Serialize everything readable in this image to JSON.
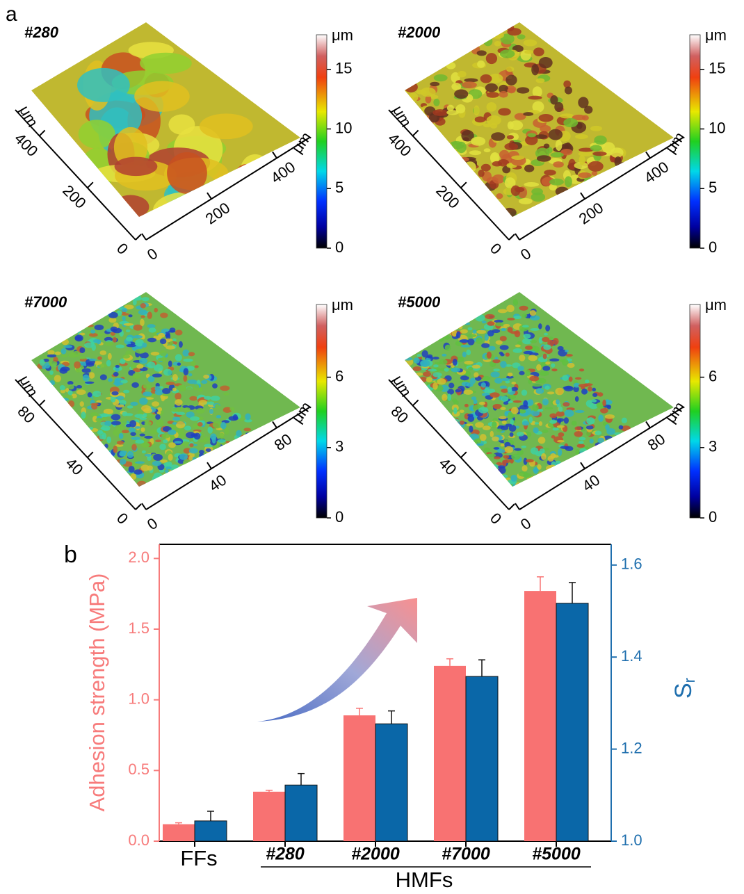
{
  "figure": {
    "panel_a_label": "a",
    "panel_b_label": "b"
  },
  "surfaces": [
    {
      "title": "#280",
      "colorbar_label": "μm",
      "clim": [
        0,
        17.9
      ],
      "cticks": [
        0,
        5,
        10,
        15
      ],
      "axis_label": "μm",
      "axis_lim": [
        0,
        500
      ],
      "axis_ticks": [
        0,
        200,
        400
      ]
    },
    {
      "title": "#2000",
      "colorbar_label": "μm",
      "clim": [
        0,
        17.9
      ],
      "cticks": [
        0,
        5,
        10,
        15
      ],
      "axis_label": "μm",
      "axis_lim": [
        0,
        500
      ],
      "axis_ticks": [
        0,
        200,
        400
      ]
    },
    {
      "title": "#7000",
      "colorbar_label": "μm",
      "clim": [
        0,
        9.1
      ],
      "cticks": [
        0,
        3,
        6
      ],
      "axis_label": "μm",
      "axis_lim": [
        0,
        100
      ],
      "axis_ticks": [
        0,
        40,
        80
      ]
    },
    {
      "title": "#5000",
      "colorbar_label": "μm",
      "clim": [
        0,
        9.1
      ],
      "cticks": [
        0,
        3,
        6
      ],
      "axis_label": "μm",
      "axis_lim": [
        0,
        100
      ],
      "axis_ticks": [
        0,
        40,
        80
      ]
    }
  ],
  "chart_data": {
    "type": "bar",
    "ylabel": "Adhesion strength (MPa)",
    "y2label": "S",
    "y2label_subscript": "r",
    "categories": [
      "FFs",
      "#280",
      "#2000",
      "#7000",
      "#5000"
    ],
    "group_label": "HMFs",
    "ylim": [
      0,
      2.1
    ],
    "yticks": [
      {
        "value": 0,
        "label": "0.0"
      },
      {
        "value": 0.5,
        "label": "0.5"
      },
      {
        "value": 1,
        "label": "1.0"
      },
      {
        "value": 1.5,
        "label": "1.5"
      },
      {
        "value": 2,
        "label": "2.0"
      }
    ],
    "y2lim": [
      1.0,
      1.645
    ],
    "y2ticks": [
      {
        "value": 1,
        "label": "1.0"
      },
      {
        "value": 1.2,
        "label": "1.2"
      },
      {
        "value": 1.4,
        "label": "1.4"
      },
      {
        "value": 1.6,
        "label": "1.6"
      }
    ],
    "ycolor": "#f77b7b",
    "y2color": "#1f6fae",
    "series": [
      {
        "color": "#f87272",
        "values": [
          0.12,
          0.35,
          0.89,
          1.24,
          1.77
        ],
        "errors": [
          0.01,
          0.01,
          0.05,
          0.05,
          0.1
        ]
      },
      {
        "color": "#0a67a8",
        "axis": "y2",
        "values": [
          1.044,
          1.122,
          1.255,
          1.358,
          1.517
        ],
        "errors": [
          0.021,
          0.025,
          0.028,
          0.036,
          0.045
        ]
      }
    ]
  }
}
